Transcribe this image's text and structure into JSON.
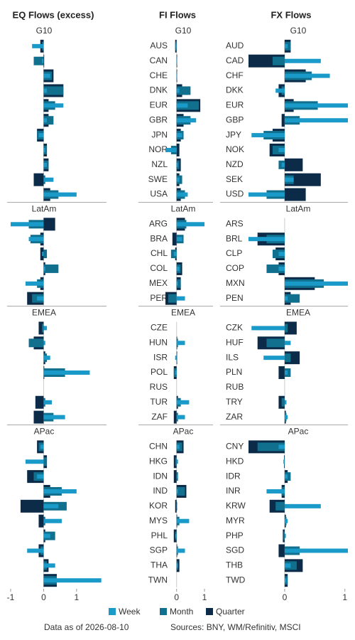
{
  "chart_data": [
    {
      "type": "bar",
      "orientation": "horizontal",
      "title": "EQ Flows (excess)",
      "xlim": [
        -1,
        1.8
      ],
      "xticks": [
        -1,
        0,
        1
      ],
      "groups": [
        {
          "name": "G10",
          "series": [
            {
              "name": "Week",
              "color": "#1a9ac9",
              "values": [
                -0.35,
                -0.05,
                0.2,
                0.1,
                0.6,
                0.1,
                -0.15,
                0.05,
                0.1,
                0.3,
                1.0
              ]
            },
            {
              "name": "Month",
              "color": "#12708f",
              "values": [
                -0.05,
                -0.3,
                0.25,
                0.6,
                0.35,
                0.3,
                -0.2,
                0.1,
                0.15,
                0.05,
                0.45
              ]
            },
            {
              "name": "Quarter",
              "color": "#0b2b48",
              "values": [
                -0.1,
                0,
                0.3,
                0.6,
                0.15,
                0.15,
                -0.2,
                0.1,
                0.15,
                -0.3,
                0.2
              ]
            }
          ]
        },
        {
          "name": "LatAm",
          "series": [
            {
              "name": "Week",
              "color": "#1a9ac9",
              "values": [
                -1.0,
                -0.45,
                -0.05,
                0.05,
                -0.55,
                -0.2
              ]
            },
            {
              "name": "Month",
              "color": "#12708f",
              "values": [
                -0.45,
                -0.4,
                0.1,
                0.45,
                -0.2,
                -0.35
              ]
            },
            {
              "name": "Quarter",
              "color": "#0b2b48",
              "values": [
                0.35,
                -0.1,
                -0.1,
                0.05,
                -0.1,
                -0.5
              ]
            }
          ]
        },
        {
          "name": "EMEA",
          "series": [
            {
              "name": "Week",
              "color": "#1a9ac9",
              "values": [
                0.1,
                0.05,
                0.2,
                1.4,
                null,
                0.25,
                0.65
              ]
            },
            {
              "name": "Month",
              "color": "#12708f",
              "values": [
                -0.05,
                -0.45,
                0.1,
                0.65,
                null,
                0.05,
                0.3
              ]
            },
            {
              "name": "Quarter",
              "color": "#0b2b48",
              "values": [
                -0.15,
                -0.3,
                0.05,
                0.02,
                null,
                -0.25,
                -0.3
              ]
            }
          ]
        },
        {
          "name": "APac",
          "series": [
            {
              "name": "Week",
              "color": "#1a9ac9",
              "values": [
                -0.1,
                -0.55,
                -0.2,
                1.0,
                0.45,
                0.55,
                0.2,
                -0.5,
                0.35,
                1.75
              ]
            },
            {
              "name": "Month",
              "color": "#12708f",
              "values": [
                -0.15,
                0.1,
                -0.3,
                0.55,
                0.7,
                0.05,
                0.35,
                -0.1,
                0.1,
                0.4
              ]
            },
            {
              "name": "Quarter",
              "color": "#0b2b48",
              "values": [
                -0.2,
                0.1,
                -0.5,
                0.2,
                -0.7,
                -0.15,
                0.05,
                -0.15,
                0.15,
                0.4
              ]
            }
          ]
        }
      ]
    },
    {
      "type": "bar",
      "orientation": "horizontal",
      "title": "FI Flows",
      "xlim": [
        -0.4,
        1
      ],
      "xticks": [
        0,
        1
      ],
      "groups": [
        {
          "name": "G10",
          "categories": [
            "AUS",
            "CAN",
            "CHE",
            "DNK",
            "EUR",
            "GBR",
            "JPN",
            "NOR",
            "NZL",
            "SWE",
            "USA"
          ],
          "series": [
            {
              "name": "Week",
              "color": "#1a9ac9",
              "values": [
                -0.03,
                0.01,
                0.02,
                0.1,
                0.4,
                0.7,
                0.2,
                -0.4,
                0.05,
                0.1,
                0.4
              ]
            },
            {
              "name": "Month",
              "color": "#12708f",
              "values": [
                -0.05,
                0.02,
                0,
                0.5,
                0.8,
                0.5,
                0.25,
                -0.2,
                0.1,
                0.2,
                0.3
              ]
            },
            {
              "name": "Quarter",
              "color": "#0b2b48",
              "values": [
                -0.05,
                0.02,
                0.01,
                0.2,
                0.85,
                0.25,
                0.15,
                0.1,
                0.15,
                0.1,
                0.15
              ]
            }
          ]
        },
        {
          "name": "LatAm",
          "categories": [
            "ARG",
            "BRA",
            "CHL",
            "COL",
            "MEX",
            "PER"
          ],
          "series": [
            {
              "name": "Week",
              "color": "#1a9ac9",
              "values": [
                1.0,
                0.2,
                -0.1,
                0.1,
                0.05,
                0.3
              ]
            },
            {
              "name": "Month",
              "color": "#12708f",
              "values": [
                0.35,
                0.25,
                -0.2,
                0.15,
                0.15,
                -0.3
              ]
            },
            {
              "name": "Quarter",
              "color": "#0b2b48",
              "values": [
                0.3,
                -0.15,
                -0.05,
                0.2,
                0.15,
                -0.4
              ]
            }
          ]
        },
        {
          "name": "EMEA",
          "categories": [
            "CZE",
            "HUN",
            "ISR",
            "POL",
            "RUS",
            "TUR",
            "ZAF"
          ],
          "series": [
            {
              "name": "Week",
              "color": "#1a9ac9",
              "values": [
                null,
                0.3,
                -0.05,
                -0.05,
                null,
                0.45,
                0.3
              ]
            },
            {
              "name": "Month",
              "color": "#12708f",
              "values": [
                null,
                0.05,
                0.02,
                -0.1,
                null,
                0.15,
                0.05
              ]
            },
            {
              "name": "Quarter",
              "color": "#0b2b48",
              "values": [
                null,
                0.02,
                0.01,
                -0.1,
                null,
                0.05,
                -0.1
              ]
            }
          ]
        },
        {
          "name": "APac",
          "categories": [
            "CHN",
            "HKG",
            "IDN",
            "IND",
            "KOR",
            "MYS",
            "PHL",
            "SGP",
            "THA",
            "TWN"
          ],
          "series": [
            {
              "name": "Week",
              "color": "#1a9ac9",
              "values": [
                0.1,
                0.05,
                0.05,
                0.05,
                0.02,
                0.45,
                -0.05,
                0.3,
                0.05,
                null
              ]
            },
            {
              "name": "Month",
              "color": "#12708f",
              "values": [
                0.2,
                -0.05,
                0.05,
                0.3,
                0.02,
                0.1,
                -0.05,
                0.05,
                0.05,
                null
              ]
            },
            {
              "name": "Quarter",
              "color": "#0b2b48",
              "values": [
                0.25,
                -0.1,
                -0.1,
                0.35,
                -0.05,
                0.02,
                -0.1,
                0.02,
                0.1,
                null
              ]
            }
          ]
        }
      ]
    },
    {
      "type": "bar",
      "orientation": "horizontal",
      "title": "FX Flows",
      "xlim": [
        -0.6,
        1.05
      ],
      "xticks": [
        0,
        1
      ],
      "groups": [
        {
          "name": "G10",
          "categories": [
            "AUD",
            "CAD",
            "CHF",
            "DKK",
            "EUR",
            "GBP",
            "JPY",
            "NOK",
            "NZD",
            "SEK",
            "USD"
          ],
          "series": [
            {
              "name": "Week",
              "color": "#1a9ac9",
              "values": [
                0.05,
                0.6,
                0.75,
                -0.15,
                1.05,
                1.05,
                -0.55,
                -0.1,
                -0.05,
                0.15,
                -0.6
              ]
            },
            {
              "name": "Month",
              "color": "#12708f",
              "values": [
                0.1,
                -0.2,
                0.45,
                -0.05,
                0.55,
                0.25,
                -0.35,
                -0.2,
                -0.1,
                0.15,
                -0.3
              ]
            },
            {
              "name": "Quarter",
              "color": "#0b2b48",
              "values": [
                0.1,
                -0.6,
                0.35,
                -0.1,
                0.15,
                -0.05,
                -0.2,
                -0.25,
                0.3,
                0.6,
                0.35
              ]
            }
          ]
        },
        {
          "name": "LatAm",
          "categories": [
            "ARS",
            "BRL",
            "CLP",
            "COP",
            "MXN",
            "PEN"
          ],
          "series": [
            {
              "name": "Week",
              "color": "#1a9ac9",
              "values": [
                null,
                -0.6,
                -0.1,
                -0.1,
                1.05,
                0.05
              ]
            },
            {
              "name": "Month",
              "color": "#12708f",
              "values": [
                null,
                -0.3,
                -0.2,
                -0.3,
                0.65,
                0.25
              ]
            },
            {
              "name": "Quarter",
              "color": "#0b2b48",
              "values": [
                null,
                -0.45,
                -0.15,
                -0.1,
                0.5,
                0.1
              ]
            }
          ]
        },
        {
          "name": "EMEA",
          "categories": [
            "CZK",
            "HUF",
            "ILS",
            "PLN",
            "RUB",
            "TRY",
            "ZAR"
          ],
          "series": [
            {
              "name": "Week",
              "color": "#1a9ac9",
              "values": [
                -0.55,
                0.1,
                -0.35,
                0.05,
                null,
                0.03,
                0.05
              ]
            },
            {
              "name": "Month",
              "color": "#12708f",
              "values": [
                0.05,
                -0.3,
                0.1,
                0.1,
                null,
                -0.05,
                0.03
              ]
            },
            {
              "name": "Quarter",
              "color": "#0b2b48",
              "values": [
                0.2,
                -0.45,
                0.25,
                -0.1,
                null,
                -0.1,
                0.02
              ]
            }
          ]
        },
        {
          "name": "APac",
          "categories": [
            "CNY",
            "HKD",
            "IDR",
            "INR",
            "KRW",
            "MYR",
            "PHP",
            "SGD",
            "THB",
            "TWD"
          ],
          "series": [
            {
              "name": "Week",
              "color": "#1a9ac9",
              "values": [
                -0.1,
                -0.02,
                0.05,
                -0.3,
                0.6,
                0.05,
                0.02,
                1.05,
                0.1,
                0.03
              ]
            },
            {
              "name": "Month",
              "color": "#12708f",
              "values": [
                -0.45,
                -0.01,
                0.1,
                -0.05,
                -0.15,
                0.03,
                -0.02,
                0.25,
                0.2,
                0.05
              ]
            },
            {
              "name": "Quarter",
              "color": "#0b2b48",
              "values": [
                -0.6,
                -0.01,
                0.05,
                -0.05,
                -0.25,
                0.02,
                -0.03,
                -0.1,
                0.3,
                0.05
              ]
            }
          ]
        }
      ]
    }
  ],
  "footer": {
    "date_note": "Data as of 2026-08-10",
    "sources": "Sources:  BNY, WM/Refinitiv, MSCI"
  }
}
